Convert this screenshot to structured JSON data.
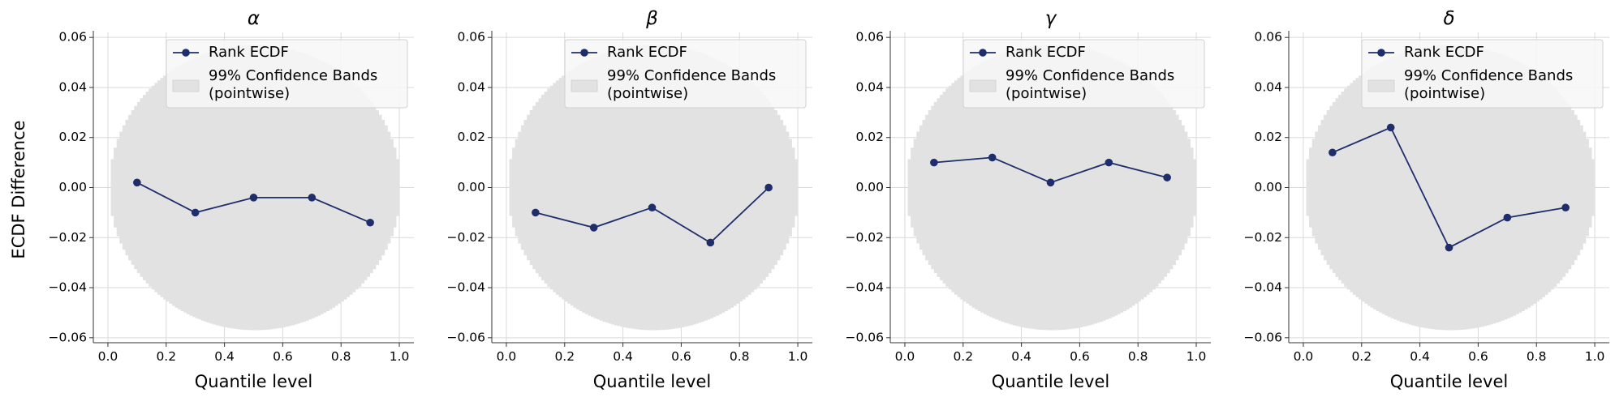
{
  "figure": {
    "ylabel": "ECDF Difference",
    "xlabel": "Quantile level",
    "legend_line": "Rank ECDF",
    "legend_band_line1": "99% Confidence Bands",
    "legend_band_line2": "(pointwise)",
    "colors": {
      "line": "#1f2d6b",
      "band": "#e2e2e2",
      "grid": "#d9d9d9",
      "legend_bg": "#f7f7f7"
    }
  },
  "chart_data": [
    {
      "type": "line",
      "title": "α",
      "xlabel": "Quantile level",
      "ylabel": "ECDF Difference",
      "xlim": [
        -0.05,
        1.05
      ],
      "ylim": [
        -0.062,
        0.062
      ],
      "xticks": [
        0.0,
        0.2,
        0.4,
        0.6,
        0.8,
        1.0
      ],
      "xtick_labels": [
        "0.0",
        "0.2",
        "0.4",
        "0.6",
        "0.8",
        "1.0"
      ],
      "yticks": [
        -0.06,
        -0.04,
        -0.02,
        0.0,
        0.02,
        0.04,
        0.06
      ],
      "ytick_labels": [
        "−0.06",
        "−0.04",
        "−0.02",
        "0.00",
        "0.02",
        "0.04",
        "0.06"
      ],
      "x": [
        0.1,
        0.3,
        0.5,
        0.7,
        0.9
      ],
      "y": [
        0.002,
        -0.01,
        -0.004,
        -0.004,
        -0.014
      ],
      "band": {
        "label": "99% Confidence Bands (pointwise)",
        "halfwidth_max": 0.057
      },
      "legend": [
        "Rank ECDF",
        "99% Confidence Bands (pointwise)"
      ],
      "grid": true
    },
    {
      "type": "line",
      "title": "β",
      "xlabel": "Quantile level",
      "xlim": [
        -0.05,
        1.05
      ],
      "ylim": [
        -0.062,
        0.062
      ],
      "xticks": [
        0.0,
        0.2,
        0.4,
        0.6,
        0.8,
        1.0
      ],
      "xtick_labels": [
        "0.0",
        "0.2",
        "0.4",
        "0.6",
        "0.8",
        "1.0"
      ],
      "yticks": [
        -0.06,
        -0.04,
        -0.02,
        0.0,
        0.02,
        0.04,
        0.06
      ],
      "ytick_labels": [
        "−0.06",
        "−0.04",
        "−0.02",
        "0.00",
        "0.02",
        "0.04",
        "0.06"
      ],
      "x": [
        0.1,
        0.3,
        0.5,
        0.7,
        0.9
      ],
      "y": [
        -0.01,
        -0.016,
        -0.008,
        -0.022,
        0.0
      ],
      "band": {
        "label": "99% Confidence Bands (pointwise)",
        "halfwidth_max": 0.057
      },
      "legend": [
        "Rank ECDF",
        "99% Confidence Bands (pointwise)"
      ],
      "grid": true
    },
    {
      "type": "line",
      "title": "γ",
      "xlabel": "Quantile level",
      "xlim": [
        -0.05,
        1.05
      ],
      "ylim": [
        -0.062,
        0.062
      ],
      "xticks": [
        0.0,
        0.2,
        0.4,
        0.6,
        0.8,
        1.0
      ],
      "xtick_labels": [
        "0.0",
        "0.2",
        "0.4",
        "0.6",
        "0.8",
        "1.0"
      ],
      "yticks": [
        -0.06,
        -0.04,
        -0.02,
        0.0,
        0.02,
        0.04,
        0.06
      ],
      "ytick_labels": [
        "−0.06",
        "−0.04",
        "−0.02",
        "0.00",
        "0.02",
        "0.04",
        "0.06"
      ],
      "x": [
        0.1,
        0.3,
        0.5,
        0.7,
        0.9
      ],
      "y": [
        0.01,
        0.012,
        0.002,
        0.01,
        0.004
      ],
      "band": {
        "label": "99% Confidence Bands (pointwise)",
        "halfwidth_max": 0.057
      },
      "legend": [
        "Rank ECDF",
        "99% Confidence Bands (pointwise)"
      ],
      "grid": true
    },
    {
      "type": "line",
      "title": "δ",
      "xlabel": "Quantile level",
      "xlim": [
        -0.05,
        1.05
      ],
      "ylim": [
        -0.062,
        0.062
      ],
      "xticks": [
        0.0,
        0.2,
        0.4,
        0.6,
        0.8,
        1.0
      ],
      "xtick_labels": [
        "0.0",
        "0.2",
        "0.4",
        "0.6",
        "0.8",
        "1.0"
      ],
      "yticks": [
        -0.06,
        -0.04,
        -0.02,
        0.0,
        0.02,
        0.04,
        0.06
      ],
      "ytick_labels": [
        "−0.06",
        "−0.04",
        "−0.02",
        "0.00",
        "0.02",
        "0.04",
        "0.06"
      ],
      "x": [
        0.1,
        0.3,
        0.5,
        0.7,
        0.9
      ],
      "y": [
        0.014,
        0.024,
        -0.024,
        -0.012,
        -0.008
      ],
      "band": {
        "label": "99% Confidence Bands (pointwise)",
        "halfwidth_max": 0.057
      },
      "legend": [
        "Rank ECDF",
        "99% Confidence Bands (pointwise)"
      ],
      "grid": true
    }
  ]
}
